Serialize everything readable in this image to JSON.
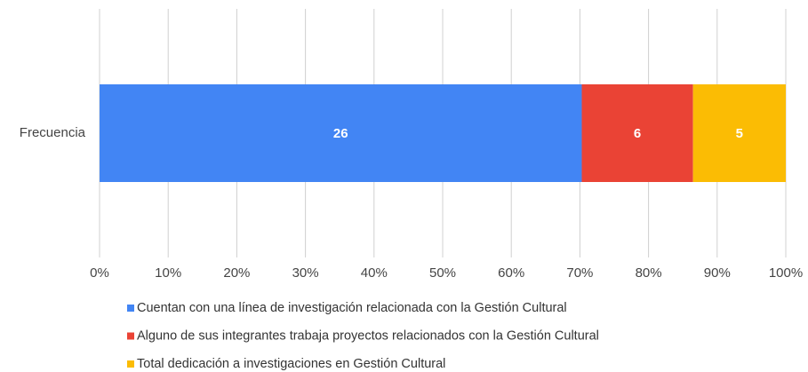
{
  "chart_data": {
    "type": "bar",
    "orientation": "horizontal",
    "stacked": "percent",
    "categories": [
      "Frecuencia"
    ],
    "series": [
      {
        "name": "Cuentan con una línea de investigación relacionada con la Gestión Cultural",
        "color": "#4285f4",
        "values": [
          26
        ]
      },
      {
        "name": "Alguno de sus integrantes trabaja proyectos relacionados con la Gestión Cultural",
        "color": "#ea4335",
        "values": [
          6
        ]
      },
      {
        "name": "Total dedicación a investigaciones en Gestión Cultural",
        "color": "#fbbc04",
        "values": [
          5
        ]
      }
    ],
    "xlim": [
      0,
      100
    ],
    "xticks": [
      {
        "value": 0,
        "label": "0%"
      },
      {
        "value": 10,
        "label": "10%"
      },
      {
        "value": 20,
        "label": "20%"
      },
      {
        "value": 30,
        "label": "30%"
      },
      {
        "value": 40,
        "label": "40%"
      },
      {
        "value": 50,
        "label": "50%"
      },
      {
        "value": 60,
        "label": "60%"
      },
      {
        "value": 70,
        "label": "70%"
      },
      {
        "value": 80,
        "label": "80%"
      },
      {
        "value": 90,
        "label": "90%"
      },
      {
        "value": 100,
        "label": "100%"
      }
    ],
    "grid": true,
    "legend": "bottom"
  }
}
